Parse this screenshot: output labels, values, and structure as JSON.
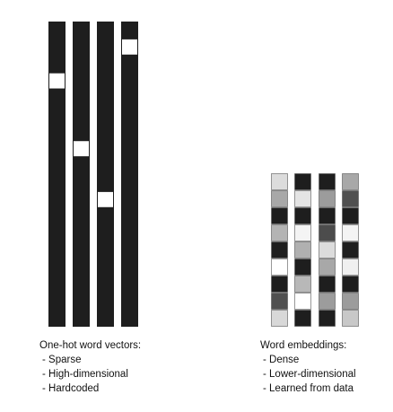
{
  "colors": {
    "background": "#ffffff",
    "bar": "#1e1e1e",
    "hot": "#ffffff",
    "cell_border": "#555555"
  },
  "onehot": {
    "title": "One-hot word vectors:",
    "items": [
      "- Sparse",
      "- High-dimensional",
      "- Hardcoded"
    ],
    "vectors": [
      {
        "name": "onehot-vector-1",
        "length": 18,
        "hot_index": 3
      },
      {
        "name": "onehot-vector-2",
        "length": 18,
        "hot_index": 7
      },
      {
        "name": "onehot-vector-3",
        "length": 18,
        "hot_index": 10
      },
      {
        "name": "onehot-vector-4",
        "length": 18,
        "hot_index": 1
      }
    ]
  },
  "embeddings": {
    "title": "Word embeddings:",
    "items": [
      "- Dense",
      "- Lower-dimensional",
      "- Learned from data"
    ],
    "vectors": [
      {
        "name": "embedding-vector-1",
        "cells": [
          "#dcdcdc",
          "#a8a8a8",
          "#1e1e1e",
          "#b4b4b4",
          "#1e1e1e",
          "#ffffff",
          "#1e1e1e",
          "#505050",
          "#d8d8d8"
        ]
      },
      {
        "name": "embedding-vector-2",
        "cells": [
          "#1e1e1e",
          "#e4e4e4",
          "#1e1e1e",
          "#f4f4f4",
          "#b0b0b0",
          "#1e1e1e",
          "#b8b8b8",
          "#ffffff",
          "#1e1e1e"
        ]
      },
      {
        "name": "embedding-vector-3",
        "cells": [
          "#1e1e1e",
          "#9c9c9c",
          "#1e1e1e",
          "#4c4c4c",
          "#dcdcdc",
          "#a8a8a8",
          "#1e1e1e",
          "#9c9c9c",
          "#1e1e1e"
        ]
      },
      {
        "name": "embedding-vector-4",
        "cells": [
          "#a8a8a8",
          "#505050",
          "#1e1e1e",
          "#f4f4f4",
          "#1e1e1e",
          "#f0f0f0",
          "#1e1e1e",
          "#9c9c9c",
          "#c8c8c8"
        ]
      }
    ]
  }
}
